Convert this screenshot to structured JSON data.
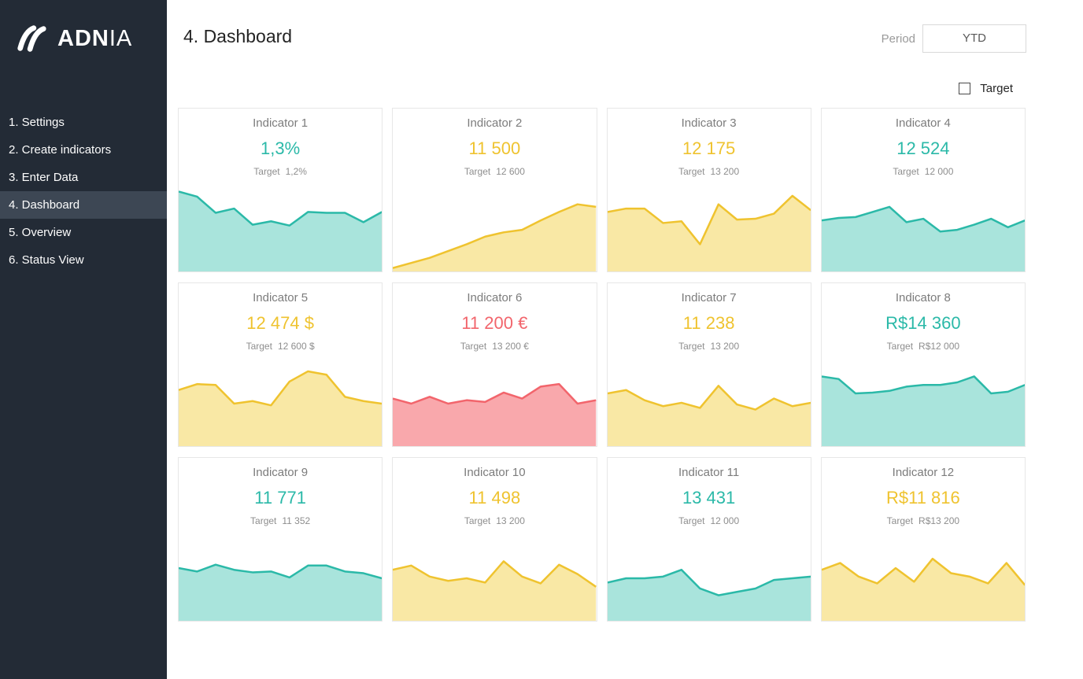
{
  "sidebar": {
    "brand_bold": "ADN",
    "brand_light": "IA",
    "items": [
      {
        "label": "1. Settings",
        "active": false
      },
      {
        "label": "2. Create indicators",
        "active": false
      },
      {
        "label": "3. Enter Data",
        "active": false
      },
      {
        "label": "4. Dashboard",
        "active": true
      },
      {
        "label": "5. Overview",
        "active": false
      },
      {
        "label": "6. Status View",
        "active": false
      }
    ]
  },
  "header": {
    "title": "4. Dashboard",
    "period_label": "Period",
    "period_value": "YTD"
  },
  "controls": {
    "target_label": "Target",
    "target_checked": false
  },
  "cards": {
    "target_label": "Target"
  },
  "colors": {
    "sidebar_bg": "#232b36",
    "sidebar_active_bg": "#3d4754",
    "line": {
      "teal": "#2bb9a8",
      "yellow": "#efc32f",
      "red": "#f2656c"
    },
    "fill": {
      "teal": "#a9e4dc",
      "yellow": "#f9e8a5",
      "red": "#f9a8ac"
    }
  },
  "chart_data": [
    {
      "type": "area",
      "title": "Indicator 1",
      "value": "1,3%",
      "target": "1,2%",
      "color": "teal",
      "values": [
        94,
        88,
        69,
        74,
        55,
        59,
        54,
        70,
        69,
        69,
        58,
        70
      ]
    },
    {
      "type": "area",
      "title": "Indicator 2",
      "value": "11 500",
      "target": "12 600",
      "color": "yellow",
      "values": [
        4,
        10,
        16,
        24,
        32,
        41,
        46,
        49,
        60,
        70,
        79,
        76
      ]
    },
    {
      "type": "area",
      "title": "Indicator 3",
      "value": "12 175",
      "target": "13 200",
      "color": "yellow",
      "values": [
        70,
        74,
        74,
        57,
        59,
        32,
        79,
        61,
        62,
        68,
        89,
        72
      ]
    },
    {
      "type": "area",
      "title": "Indicator 4",
      "value": "12 524",
      "target": "12 000",
      "color": "teal",
      "values": [
        60,
        63,
        64,
        70,
        76,
        58,
        62,
        47,
        49,
        55,
        62,
        52,
        60
      ]
    },
    {
      "type": "area",
      "title": "Indicator 5",
      "value": "12 474 $",
      "target": "12 600 $",
      "color": "yellow",
      "values": [
        66,
        73,
        72,
        50,
        53,
        48,
        76,
        88,
        84,
        58,
        53,
        50
      ]
    },
    {
      "type": "area",
      "title": "Indicator 6",
      "value": "11 200 €",
      "target": "13 200 €",
      "color": "red",
      "values": [
        56,
        50,
        58,
        50,
        54,
        52,
        63,
        56,
        70,
        73,
        50,
        54
      ]
    },
    {
      "type": "area",
      "title": "Indicator 7",
      "value": "11 238",
      "target": "13 200",
      "color": "yellow",
      "values": [
        62,
        66,
        54,
        47,
        51,
        45,
        71,
        49,
        43,
        56,
        47,
        51
      ]
    },
    {
      "type": "area",
      "title": "Indicator 8",
      "value": "R$14 360",
      "target": "R$12 000",
      "color": "teal",
      "values": [
        82,
        79,
        62,
        63,
        65,
        70,
        72,
        72,
        75,
        82,
        62,
        64,
        72
      ]
    },
    {
      "type": "area",
      "title": "Indicator 9",
      "value": "11 771",
      "target": "11 352",
      "color": "teal",
      "values": [
        62,
        58,
        66,
        60,
        57,
        58,
        51,
        65,
        65,
        58,
        56,
        50
      ]
    },
    {
      "type": "area",
      "title": "Indicator 10",
      "value": "11 498",
      "target": "13 200",
      "color": "yellow",
      "values": [
        60,
        65,
        52,
        47,
        50,
        45,
        70,
        52,
        44,
        66,
        55,
        40
      ]
    },
    {
      "type": "area",
      "title": "Indicator 11",
      "value": "13 431",
      "target": "12 000",
      "color": "teal",
      "values": [
        45,
        50,
        50,
        52,
        60,
        38,
        30,
        34,
        38,
        48,
        50,
        52
      ]
    },
    {
      "type": "area",
      "title": "Indicator 12",
      "value": "R$11 816",
      "target": "R$13 200",
      "color": "yellow",
      "values": [
        60,
        68,
        52,
        44,
        62,
        46,
        73,
        56,
        52,
        44,
        68,
        42
      ]
    }
  ]
}
